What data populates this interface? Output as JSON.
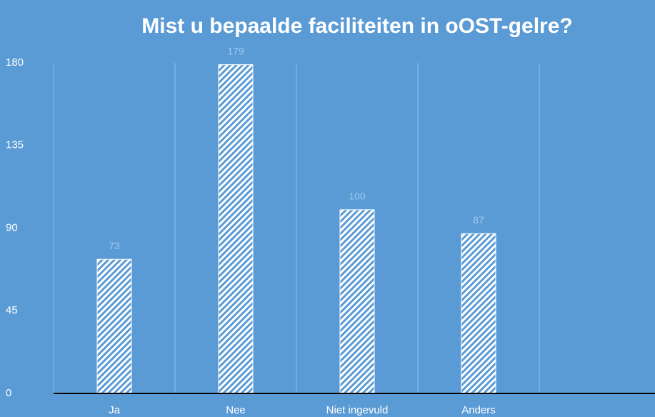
{
  "chart_data": {
    "type": "bar",
    "title": "Mist u bepaalde faciliteiten in oOST-gelre?",
    "categories": [
      "Ja",
      "Nee",
      "Niet ingevuld",
      "Anders",
      null
    ],
    "values": [
      73,
      179,
      100,
      87,
      null
    ],
    "color": "#ffffff",
    "ylim": [
      0,
      180
    ],
    "yticks": [
      0,
      45,
      90,
      135,
      180
    ],
    "grid": true
  }
}
